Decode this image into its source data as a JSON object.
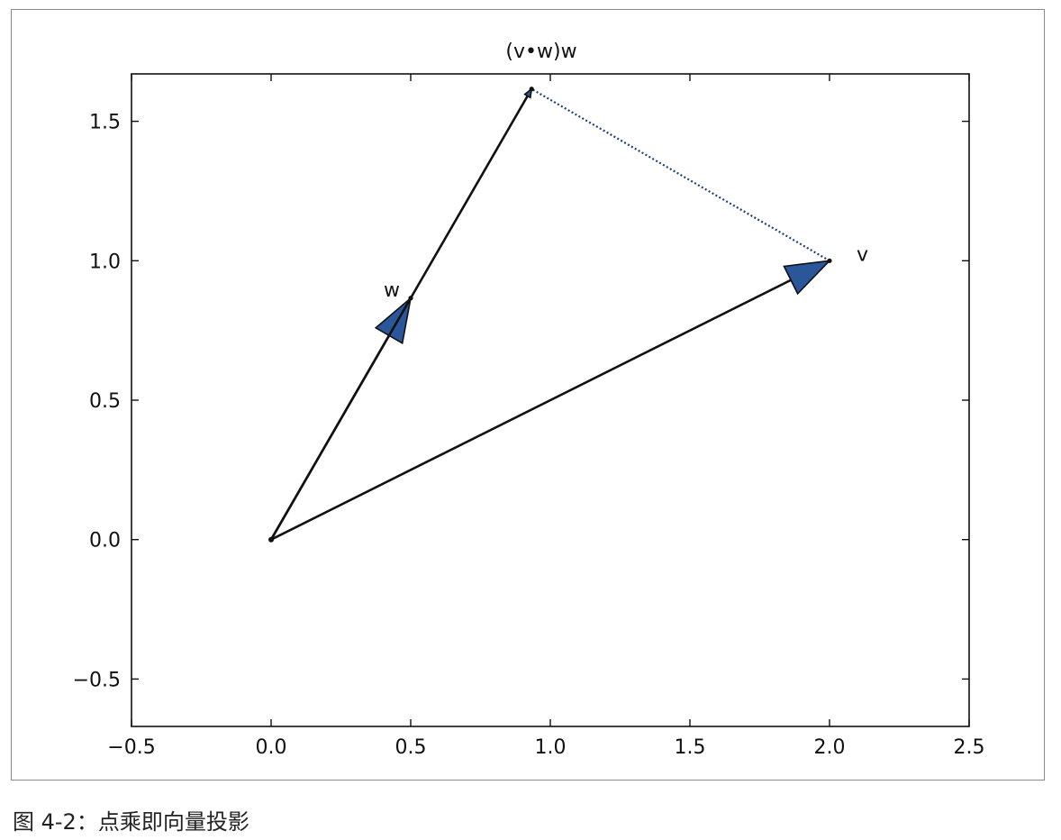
{
  "caption": "图 4-2：点乘即向量投影",
  "chart_data": {
    "type": "line",
    "title": "(v•w)w",
    "xlabel": "",
    "ylabel": "",
    "xlim": [
      -0.5,
      2.5
    ],
    "ylim": [
      -0.67,
      1.67
    ],
    "xticks": [
      -0.5,
      0.0,
      0.5,
      1.0,
      1.5,
      2.0,
      2.5
    ],
    "yticks": [
      -0.5,
      0.0,
      0.5,
      1.0,
      1.5
    ],
    "xtick_labels": [
      "−0.5",
      "0.0",
      "0.5",
      "1.0",
      "1.5",
      "2.0",
      "2.5"
    ],
    "ytick_labels": [
      "−0.5",
      "0.0",
      "0.5",
      "1.0",
      "1.5"
    ],
    "grid": false,
    "colors": {
      "arrow_fill": "#2b579a",
      "line": "#111111",
      "dotted": "#1f3f7a"
    },
    "vectors": [
      {
        "label": "w",
        "from": [
          0,
          0
        ],
        "to": [
          0.5,
          0.866
        ],
        "style": "solid",
        "head": "large"
      },
      {
        "label": "v",
        "from": [
          0,
          0
        ],
        "to": [
          2.0,
          1.0
        ],
        "style": "solid",
        "head": "large"
      },
      {
        "label": "",
        "from": [
          0,
          0
        ],
        "to": [
          0.933,
          1.616
        ],
        "style": "solid",
        "head": "small"
      }
    ],
    "projection_line": {
      "from": [
        2.0,
        1.0
      ],
      "to": [
        0.933,
        1.616
      ],
      "style": "dotted"
    }
  }
}
